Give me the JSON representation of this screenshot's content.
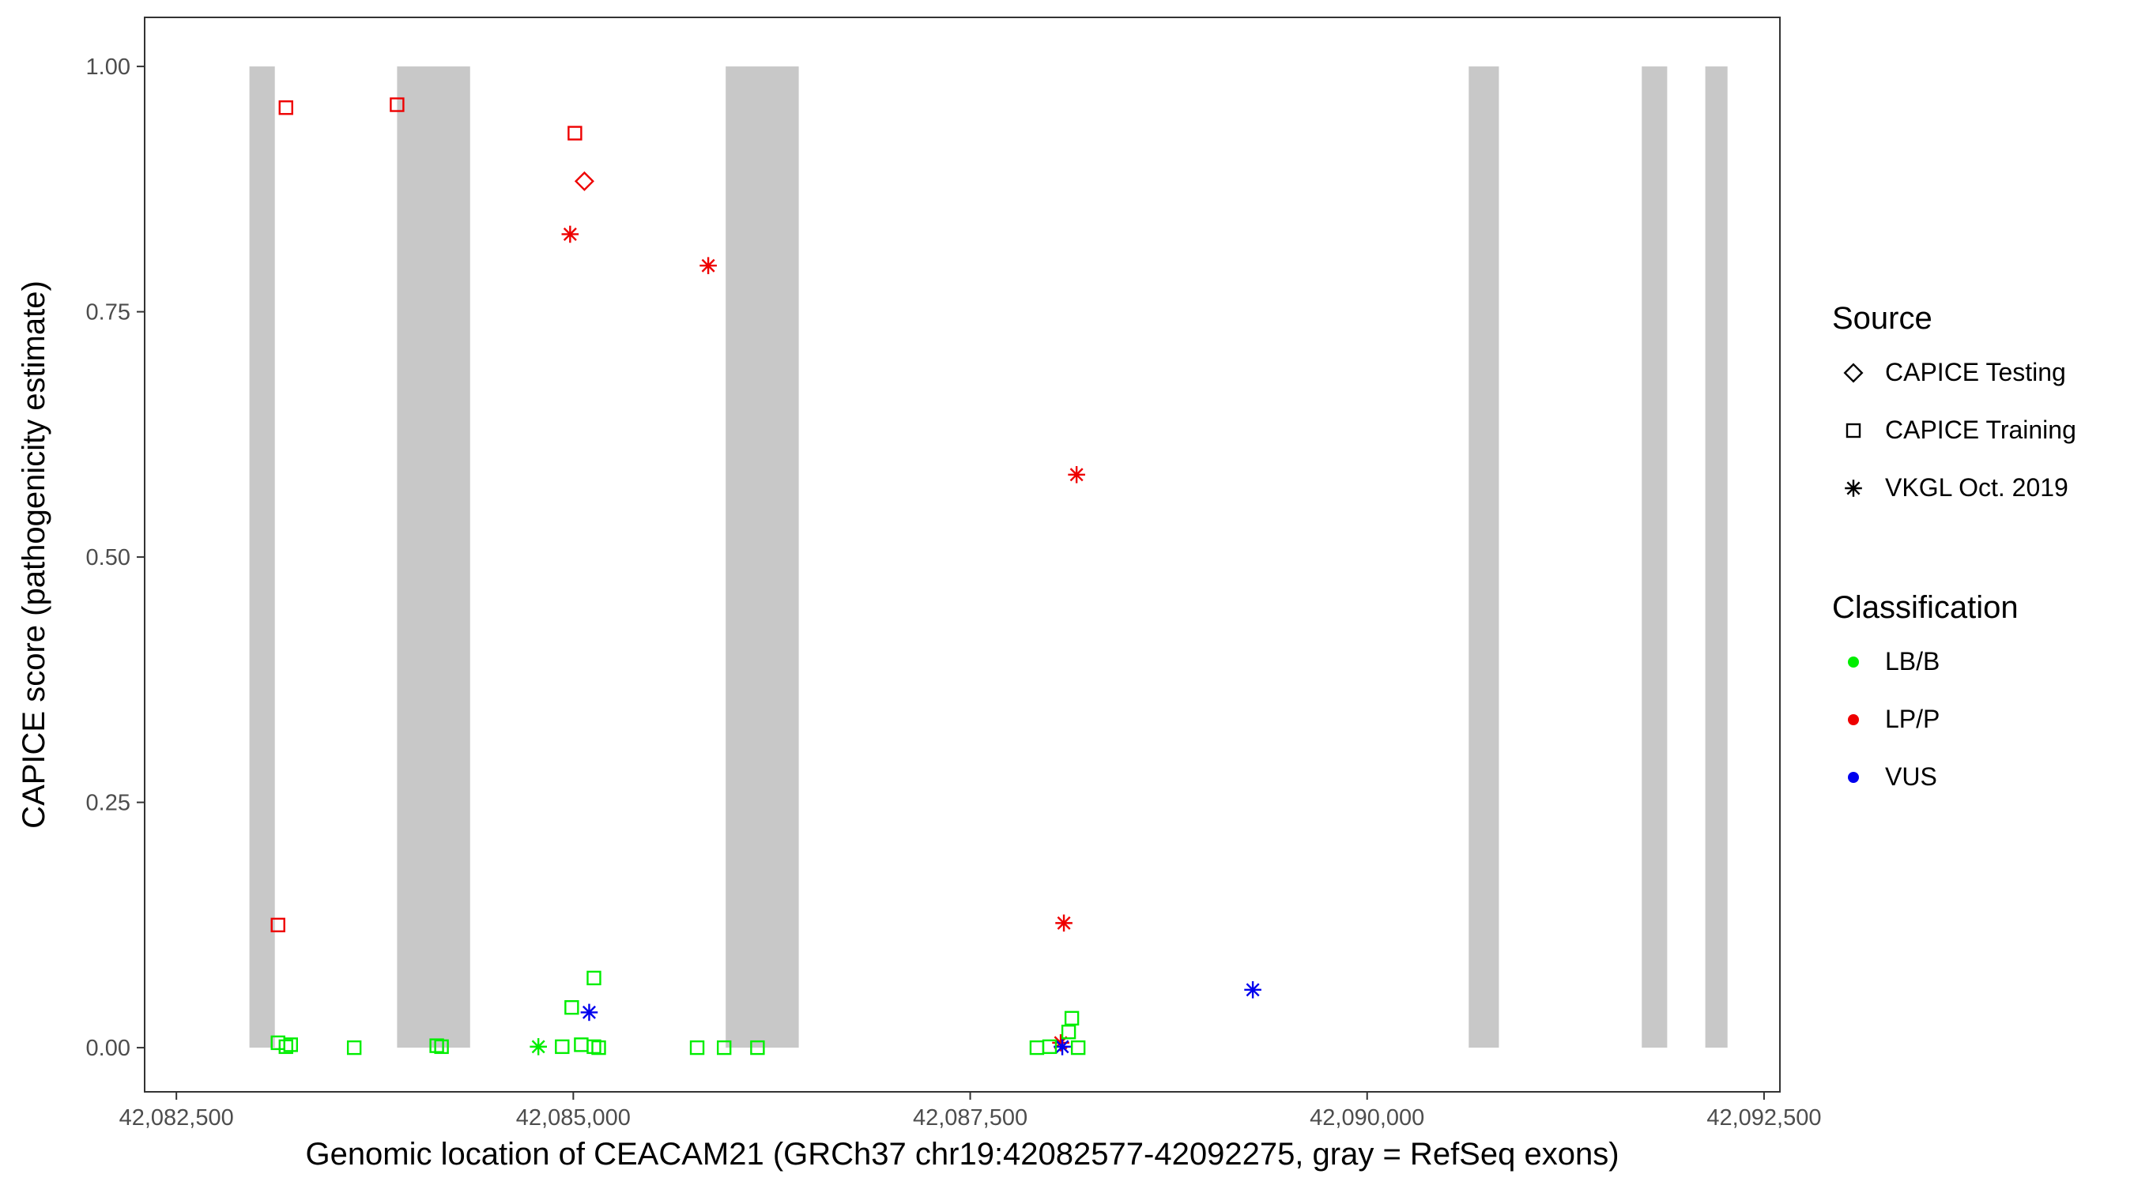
{
  "chart_data": {
    "type": "scatter",
    "xlabel": "Genomic location of CEACAM21 (GRCh37 chr19:42082577-42092275, gray = RefSeq exons)",
    "ylabel": "CAPICE score (pathogenicity estimate)",
    "xlim": [
      42082300,
      42092600
    ],
    "ylim": [
      -0.045,
      1.05
    ],
    "x_ticks": [
      42082500,
      42085000,
      42087500,
      42090000,
      42092500
    ],
    "x_tick_labels": [
      "42,082,500",
      "42,085,000",
      "42,087,500",
      "42,090,000",
      "42,092,500"
    ],
    "y_ticks": [
      0,
      0.25,
      0.5,
      0.75,
      1.0
    ],
    "y_tick_labels": [
      "0.00",
      "0.25",
      "0.50",
      "0.75",
      "1.00"
    ],
    "grid": false,
    "exons": [
      [
        42082960,
        42083120
      ],
      [
        42083890,
        42084350
      ],
      [
        42085960,
        42086420
      ],
      [
        42090640,
        42090830
      ],
      [
        42091730,
        42091890
      ],
      [
        42092130,
        42092270
      ]
    ],
    "exon_color": "#c8c8c8",
    "legends": [
      {
        "title": "Source",
        "entries": [
          {
            "label": "CAPICE Testing",
            "shape": "diamond"
          },
          {
            "label": "CAPICE Training",
            "shape": "square"
          },
          {
            "label": "VKGL Oct. 2019",
            "shape": "asterisk"
          }
        ]
      },
      {
        "title": "Classification",
        "entries": [
          {
            "label": "LB/B",
            "color": "#00ee00"
          },
          {
            "label": "LP/P",
            "color": "#ee0000"
          },
          {
            "label": "VUS",
            "color": "#0000ee"
          }
        ]
      }
    ],
    "colors": {
      "LB/B": "#00ee00",
      "LP/P": "#ee0000",
      "VUS": "#0000ee"
    },
    "points": [
      {
        "x": 42083140,
        "y": 0.125,
        "source": "CAPICE Training",
        "classification": "LP/P"
      },
      {
        "x": 42083190,
        "y": 0.958,
        "source": "CAPICE Training",
        "classification": "LP/P"
      },
      {
        "x": 42083890,
        "y": 0.961,
        "source": "CAPICE Training",
        "classification": "LP/P"
      },
      {
        "x": 42085010,
        "y": 0.932,
        "source": "CAPICE Training",
        "classification": "LP/P"
      },
      {
        "x": 42085070,
        "y": 0.883,
        "source": "CAPICE Testing",
        "classification": "LP/P"
      },
      {
        "x": 42084980,
        "y": 0.829,
        "source": "VKGL Oct. 2019",
        "classification": "LP/P"
      },
      {
        "x": 42085850,
        "y": 0.797,
        "source": "VKGL Oct. 2019",
        "classification": "LP/P"
      },
      {
        "x": 42088170,
        "y": 0.584,
        "source": "VKGL Oct. 2019",
        "classification": "LP/P"
      },
      {
        "x": 42088090,
        "y": 0.127,
        "source": "VKGL Oct. 2019",
        "classification": "LP/P"
      },
      {
        "x": 42088070,
        "y": 0.005,
        "source": "VKGL Oct. 2019",
        "classification": "LP/P"
      },
      {
        "x": 42085100,
        "y": 0.036,
        "source": "VKGL Oct. 2019",
        "classification": "VUS"
      },
      {
        "x": 42089280,
        "y": 0.059,
        "source": "VKGL Oct. 2019",
        "classification": "VUS"
      },
      {
        "x": 42088080,
        "y": 0.001,
        "source": "VKGL Oct. 2019",
        "classification": "VUS"
      },
      {
        "x": 42084780,
        "y": 0.001,
        "source": "VKGL Oct. 2019",
        "classification": "LB/B"
      },
      {
        "x": 42083140,
        "y": 0.005,
        "source": "CAPICE Training",
        "classification": "LB/B"
      },
      {
        "x": 42083190,
        "y": 0.001,
        "source": "CAPICE Training",
        "classification": "LB/B"
      },
      {
        "x": 42083220,
        "y": 0.003,
        "source": "CAPICE Training",
        "classification": "LB/B"
      },
      {
        "x": 42083620,
        "y": 0.0,
        "source": "CAPICE Training",
        "classification": "LB/B"
      },
      {
        "x": 42084140,
        "y": 0.002,
        "source": "CAPICE Training",
        "classification": "LB/B"
      },
      {
        "x": 42084170,
        "y": 0.001,
        "source": "CAPICE Training",
        "classification": "LB/B"
      },
      {
        "x": 42084930,
        "y": 0.001,
        "source": "CAPICE Training",
        "classification": "LB/B"
      },
      {
        "x": 42084990,
        "y": 0.041,
        "source": "CAPICE Training",
        "classification": "LB/B"
      },
      {
        "x": 42085050,
        "y": 0.003,
        "source": "CAPICE Training",
        "classification": "LB/B"
      },
      {
        "x": 42085130,
        "y": 0.071,
        "source": "CAPICE Training",
        "classification": "LB/B"
      },
      {
        "x": 42085130,
        "y": 0.001,
        "source": "CAPICE Training",
        "classification": "LB/B"
      },
      {
        "x": 42085160,
        "y": 0.0,
        "source": "CAPICE Training",
        "classification": "LB/B"
      },
      {
        "x": 42085780,
        "y": 0.0,
        "source": "CAPICE Training",
        "classification": "LB/B"
      },
      {
        "x": 42085950,
        "y": 0.0,
        "source": "CAPICE Training",
        "classification": "LB/B"
      },
      {
        "x": 42086160,
        "y": 0.0,
        "source": "CAPICE Training",
        "classification": "LB/B"
      },
      {
        "x": 42087920,
        "y": 0.0,
        "source": "CAPICE Training",
        "classification": "LB/B"
      },
      {
        "x": 42088000,
        "y": 0.001,
        "source": "CAPICE Training",
        "classification": "LB/B"
      },
      {
        "x": 42088120,
        "y": 0.016,
        "source": "CAPICE Training",
        "classification": "LB/B"
      },
      {
        "x": 42088140,
        "y": 0.03,
        "source": "CAPICE Training",
        "classification": "LB/B"
      },
      {
        "x": 42088180,
        "y": 0.0,
        "source": "CAPICE Training",
        "classification": "LB/B"
      }
    ]
  }
}
